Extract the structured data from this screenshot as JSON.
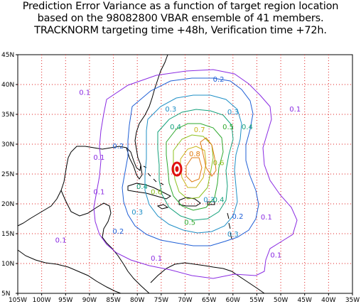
{
  "title": {
    "line1": "Prediction Error Variance as a function of target region location",
    "line2": "based on the 98082800 VBAR ensemble of 41 members.",
    "line3": "TRACKNORM targeting time +48h, Verification time +72h."
  },
  "axes": {
    "x_ticks": [
      "105W",
      "100W",
      "95W",
      "90W",
      "85W",
      "80W",
      "75W",
      "70W",
      "65W",
      "60W",
      "55W",
      "50W",
      "45W",
      "40W",
      "35W"
    ],
    "y_ticks": [
      "5N",
      "10N",
      "15N",
      "20N",
      "25N",
      "30N",
      "35N",
      "40N",
      "45N"
    ],
    "lon_range": [
      -105,
      -35
    ],
    "lat_range": [
      5,
      45
    ],
    "grid": "dotted red every 5 degrees"
  },
  "contour_levels": [
    "0.1",
    "0.2",
    "0.3",
    "0.4",
    "0.5",
    "0.6",
    "0.7",
    "0.8"
  ],
  "contour_labels": [
    {
      "text": "0.1",
      "lon": -91,
      "lat": 38.3,
      "color": "#8a2be2"
    },
    {
      "text": "0.1",
      "lon": -88,
      "lat": 27.4,
      "color": "#8a2be2"
    },
    {
      "text": "0.1",
      "lon": -88,
      "lat": 21.6,
      "color": "#8a2be2"
    },
    {
      "text": "0.1",
      "lon": -96,
      "lat": 13.5,
      "color": "#8a2be2"
    },
    {
      "text": "0.1",
      "lon": -76,
      "lat": 10.5,
      "color": "#8a2be2"
    },
    {
      "text": "0.1",
      "lon": -51,
      "lat": 11.0,
      "color": "#8a2be2"
    },
    {
      "text": "0.1",
      "lon": -53,
      "lat": 17.4,
      "color": "#8a2be2"
    },
    {
      "text": "0.1",
      "lon": -47,
      "lat": 35.5,
      "color": "#8a2be2"
    },
    {
      "text": "0.2",
      "lon": -84,
      "lat": 29.3,
      "color": "#1f5fd6"
    },
    {
      "text": "0.2",
      "lon": -63,
      "lat": 40.5,
      "color": "#1f5fd6"
    },
    {
      "text": "0.2",
      "lon": -84,
      "lat": 15.0,
      "color": "#1f5fd6"
    },
    {
      "text": "0.2",
      "lon": -59,
      "lat": 17.5,
      "color": "#1f5fd6"
    },
    {
      "text": "0.3",
      "lon": -60,
      "lat": 35.0,
      "color": "#1f8fc6"
    },
    {
      "text": "0.3",
      "lon": -73,
      "lat": 35.5,
      "color": "#1f8fc6"
    },
    {
      "text": "0.3",
      "lon": -80,
      "lat": 18.2,
      "color": "#1f8fc6"
    },
    {
      "text": "0.3",
      "lon": -65,
      "lat": 20.3,
      "color": "#1f8fc6"
    },
    {
      "text": "0.3",
      "lon": -60,
      "lat": 14.5,
      "color": "#1f8fc6"
    },
    {
      "text": "0.4",
      "lon": -72,
      "lat": 32.5,
      "color": "#12a07a"
    },
    {
      "text": "0.4",
      "lon": -57,
      "lat": 32.5,
      "color": "#12a07a"
    },
    {
      "text": "0.4",
      "lon": -79,
      "lat": 22.5,
      "color": "#12a07a"
    },
    {
      "text": "0.4",
      "lon": -63,
      "lat": 20.3,
      "color": "#12a07a"
    },
    {
      "text": "0.5",
      "lon": -61,
      "lat": 32.5,
      "color": "#2ea82e"
    },
    {
      "text": "0.5",
      "lon": -69,
      "lat": 16.5,
      "color": "#2ea82e"
    },
    {
      "text": "0.6",
      "lon": -76,
      "lat": 21.6,
      "color": "#8cc01e"
    },
    {
      "text": "0.6",
      "lon": -63,
      "lat": 26.5,
      "color": "#8cc01e"
    },
    {
      "text": "0.7",
      "lon": -67,
      "lat": 32.0,
      "color": "#c9b41a"
    },
    {
      "text": "0.8",
      "lon": -68,
      "lat": 28.0,
      "color": "#e07a10"
    }
  ],
  "colors": {
    "grid": "#e02020",
    "coast": "#000000",
    "level_0.1": "#8a2be2",
    "level_0.2": "#1f5fd6",
    "level_0.3": "#1f8fc6",
    "level_0.4": "#12a07a",
    "level_0.5": "#2ea82e",
    "level_0.6": "#8cc01e",
    "level_0.7": "#c9b41a",
    "level_0.8": "#e07a10",
    "max": "#e01010"
  }
}
